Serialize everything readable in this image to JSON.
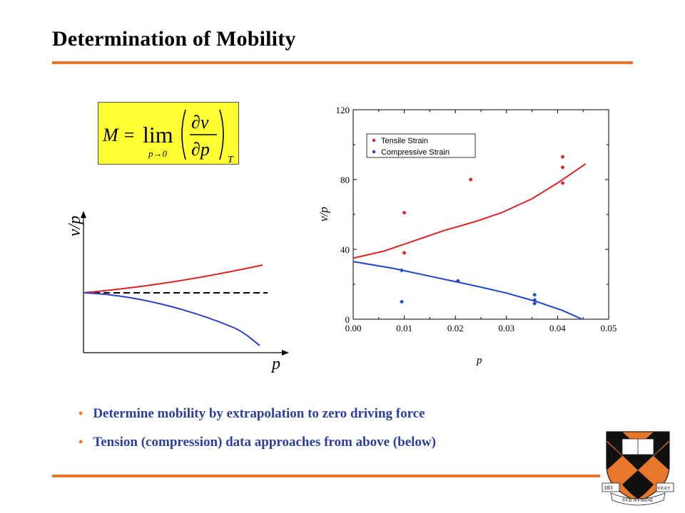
{
  "title": "Determination  of Mobility",
  "formula": {
    "lhs": "M =",
    "op": "lim",
    "sub": "p→0",
    "num": "∂v",
    "den": "∂p",
    "subscript": "T"
  },
  "sketch": {
    "ylabel": "v/p",
    "xlabel": "p"
  },
  "bullets": [
    "Determine mobility by extrapolation to zero driving force",
    "Tension (compression) data approaches from above (below)"
  ],
  "shield": {
    "book_left": "DEI",
    "book_right": "VIGET",
    "banner": "SVB NVMINE"
  },
  "colors": {
    "accent": "#e8762b",
    "tensile": "#dd2222",
    "compressive": "#2244cc",
    "bullet_text": "#2a3f9e"
  },
  "chart_data": {
    "type": "scatter",
    "xlabel": "p",
    "ylabel": "v/p",
    "xlim": [
      0.0,
      0.05
    ],
    "ylim": [
      0,
      120
    ],
    "xticks": [
      "0.00",
      "0.01",
      "0.02",
      "0.03",
      "0.04",
      "0.05"
    ],
    "yticks": [
      "0",
      "40",
      "80",
      "120"
    ],
    "legend_position": "top-left",
    "series": [
      {
        "name": "Tensile Strain",
        "color": "#dd2222",
        "points": [
          [
            0.01,
            61
          ],
          [
            0.01,
            38
          ],
          [
            0.023,
            80
          ],
          [
            0.041,
            93
          ],
          [
            0.041,
            87
          ],
          [
            0.041,
            78
          ]
        ],
        "fit": [
          [
            0.0,
            35
          ],
          [
            0.006,
            39
          ],
          [
            0.012,
            45
          ],
          [
            0.018,
            51
          ],
          [
            0.024,
            56
          ],
          [
            0.029,
            61
          ],
          [
            0.035,
            69
          ],
          [
            0.04,
            78
          ],
          [
            0.0455,
            89
          ]
        ]
      },
      {
        "name": "Compressive Strain",
        "color": "#2244cc",
        "points": [
          [
            0.0095,
            28
          ],
          [
            0.0095,
            10
          ],
          [
            0.0205,
            22
          ],
          [
            0.0355,
            14
          ],
          [
            0.0355,
            11
          ],
          [
            0.0355,
            9
          ]
        ],
        "fit": [
          [
            0.0,
            33
          ],
          [
            0.008,
            29
          ],
          [
            0.016,
            24
          ],
          [
            0.024,
            19
          ],
          [
            0.03,
            15
          ],
          [
            0.036,
            10
          ],
          [
            0.041,
            5
          ],
          [
            0.0448,
            0
          ]
        ]
      }
    ]
  }
}
